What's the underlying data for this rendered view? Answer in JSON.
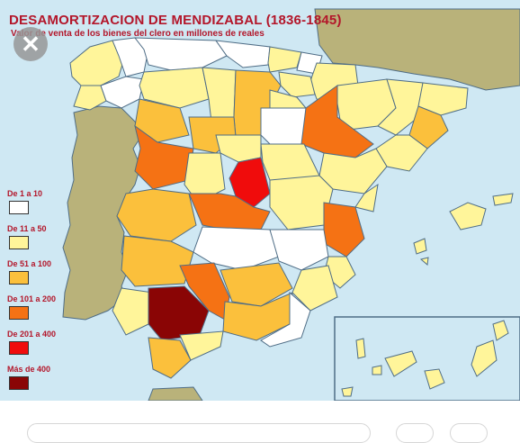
{
  "map": {
    "title": "DESAMORTIZACION DE MENDIZABAL (1836-1845)",
    "subtitle": "Valor de venta de los bienes del clero en millones de reales"
  },
  "legend": [
    {
      "label": "De 1 a 10",
      "color": "#ffffff"
    },
    {
      "label": "De 11 a 50",
      "color": "#fff59a"
    },
    {
      "label": "De 51 a 100",
      "color": "#fbc03c"
    },
    {
      "label": "De 101 a 200",
      "color": "#f57214"
    },
    {
      "label": "De 201 a 400",
      "color": "#f00c0c"
    },
    {
      "label": "Más de 400",
      "color": "#8a0505"
    }
  ],
  "colors": {
    "sea": "#cfe8f3",
    "neighbor_land": "#b9b27a",
    "border": "#4f6d86"
  },
  "icons": {
    "close": "close-icon"
  }
}
